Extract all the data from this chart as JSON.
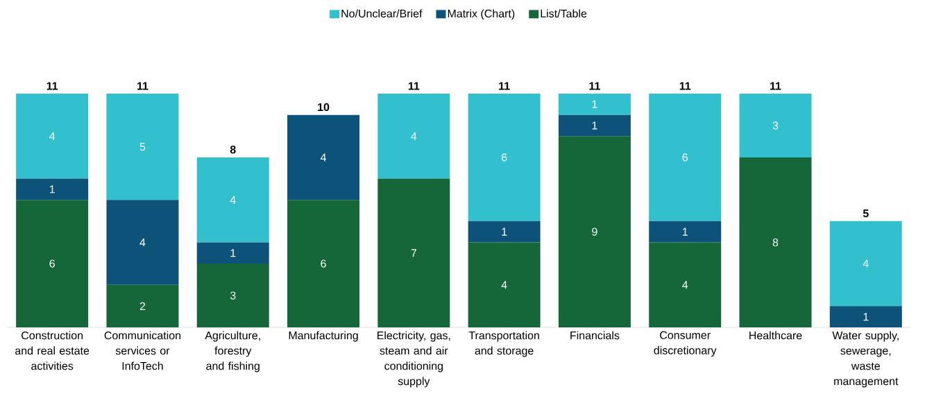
{
  "chart_data": {
    "type": "bar",
    "stacked": true,
    "data_labels": true,
    "legend": "top",
    "categories": [
      "Construction and real estate activities",
      "Communication services or InfoTech",
      "Agriculture, forestry and fishing",
      "Manufacturing",
      "Electricity, gas, steam and air conditioning supply",
      "Transportation and storage",
      "Financials",
      "Consumer discretionary",
      "Healthcare",
      "Water supply, sewerage, waste management"
    ],
    "series": [
      {
        "name": "List/Table",
        "color": "#156639",
        "values": [
          6,
          2,
          3,
          6,
          7,
          4,
          9,
          4,
          8,
          null
        ]
      },
      {
        "name": "Matrix (Chart)",
        "color": "#0d5279",
        "values": [
          1,
          4,
          1,
          4,
          null,
          1,
          1,
          1,
          null,
          1
        ]
      },
      {
        "name": "No/Unclear/Brief",
        "color": "#32c0cf",
        "values": [
          4,
          5,
          4,
          null,
          4,
          6,
          1,
          6,
          3,
          4
        ]
      }
    ],
    "totals": [
      "11",
      "11",
      "8",
      "10",
      "11",
      "11",
      "11",
      "11",
      "11",
      "5"
    ]
  }
}
